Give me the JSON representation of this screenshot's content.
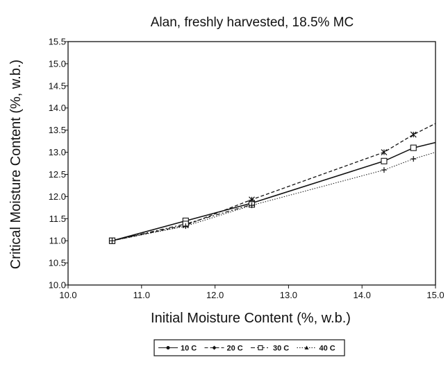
{
  "chart_data": {
    "type": "line",
    "title": "Alan, freshly harvested, 18.5% MC",
    "xlabel": "Initial Moisture Content (%, w.b.)",
    "ylabel": "Critical Moisture Content (%, w.b.)",
    "xlim": [
      10.0,
      15.0
    ],
    "ylim": [
      10.0,
      15.5
    ],
    "xticks": [
      "10.0",
      "11.0",
      "12.0",
      "13.0",
      "14.0",
      "15.0"
    ],
    "yticks": [
      "10.0",
      "10.5",
      "11.0",
      "11.5",
      "12.0",
      "12.5",
      "13.0",
      "13.5",
      "14.0",
      "14.5",
      "15.0",
      "15.5"
    ],
    "grid": false,
    "legend_position": "bottom",
    "series": [
      {
        "name": "10 C",
        "style": "solid",
        "marker": "square",
        "x": [
          10.6,
          11.6,
          12.5,
          14.3,
          14.7,
          15.0
        ],
        "y": [
          11.0,
          11.45,
          11.85,
          12.8,
          13.1,
          13.22
        ]
      },
      {
        "name": "20 C",
        "style": "dashed",
        "marker": "star",
        "x": [
          10.6,
          11.6,
          12.5,
          14.3,
          14.7,
          15.0
        ],
        "y": [
          11.0,
          11.35,
          11.93,
          13.0,
          13.4,
          13.65
        ]
      },
      {
        "name": "30 C",
        "style": "dash-dot",
        "marker": "square",
        "x": [
          10.6,
          11.6,
          12.5
        ],
        "y": [
          11.0,
          11.38,
          11.82
        ]
      },
      {
        "name": "40 C",
        "style": "dotted",
        "marker": "plus",
        "x": [
          10.6,
          11.6,
          12.5,
          14.3,
          14.7,
          15.0
        ],
        "y": [
          11.0,
          11.33,
          11.8,
          12.6,
          12.85,
          13.0
        ]
      }
    ]
  }
}
